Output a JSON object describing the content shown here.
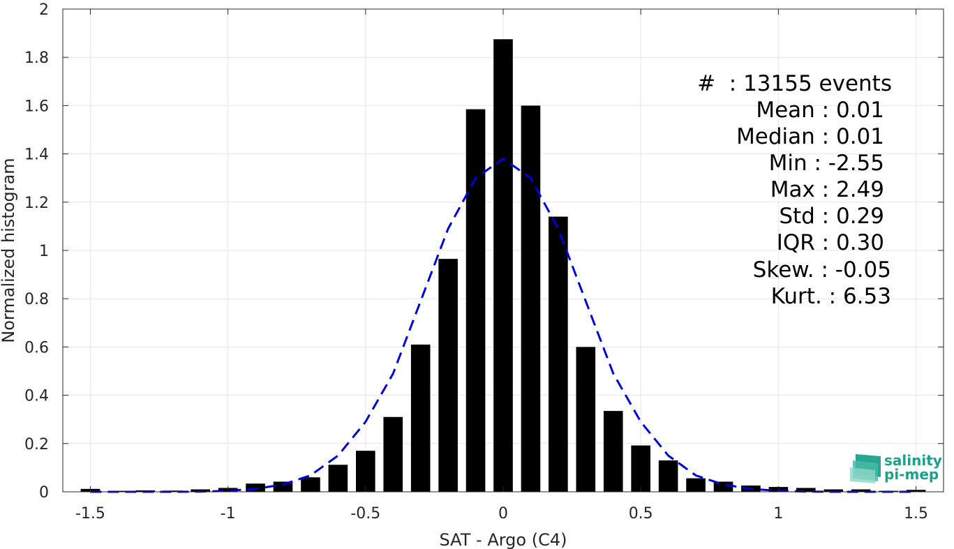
{
  "chart_data": {
    "type": "bar",
    "xlabel": "SAT - Argo (C4)",
    "ylabel": "Normalized histogram",
    "xlim": [
      -1.6,
      1.6
    ],
    "ylim": [
      0,
      2
    ],
    "grid": true,
    "x_ticks": [
      -1.5,
      -1,
      -0.5,
      0,
      0.5,
      1,
      1.5
    ],
    "x_tick_labels": [
      "-1.5",
      "-1",
      "-0.5",
      "0",
      "0.5",
      "1",
      "1.5"
    ],
    "y_ticks": [
      0,
      0.2,
      0.4,
      0.6,
      0.8,
      1,
      1.2,
      1.4,
      1.6,
      1.8,
      2
    ],
    "y_tick_labels": [
      "0",
      "0.2",
      "0.4",
      "0.6",
      "0.8",
      "1",
      "1.2",
      "1.4",
      "1.6",
      "1.8",
      "2"
    ],
    "bin_width": 0.1,
    "bar_color": "#000000",
    "x": [
      -1.5,
      -1.4,
      -1.3,
      -1.2,
      -1.1,
      -1.0,
      -0.9,
      -0.8,
      -0.7,
      -0.6,
      -0.5,
      -0.4,
      -0.3,
      -0.2,
      -0.1,
      0.0,
      0.1,
      0.2,
      0.3,
      0.4,
      0.5,
      0.6,
      0.7,
      0.8,
      0.9,
      1.0,
      1.1,
      1.2,
      1.3,
      1.4,
      1.5
    ],
    "values": [
      0.012,
      0.004,
      0.006,
      0.005,
      0.01,
      0.016,
      0.034,
      0.042,
      0.06,
      0.112,
      0.17,
      0.31,
      0.61,
      0.965,
      1.585,
      1.875,
      1.6,
      1.14,
      0.6,
      0.335,
      0.192,
      0.13,
      0.056,
      0.042,
      0.026,
      0.02,
      0.016,
      0.01,
      0.01,
      0.004,
      0.008
    ],
    "fit": {
      "style": "dashed",
      "color": "#0000dd",
      "x": [
        -1.5,
        -1.4,
        -1.3,
        -1.2,
        -1.1,
        -1.0,
        -0.9,
        -0.8,
        -0.7,
        -0.6,
        -0.5,
        -0.4,
        -0.3,
        -0.2,
        -0.1,
        0.0,
        0.1,
        0.2,
        0.3,
        0.4,
        0.5,
        0.6,
        0.7,
        0.8,
        0.9,
        1.0,
        1.1,
        1.2,
        1.3,
        1.4,
        1.5
      ],
      "y": [
        0.0,
        0.0,
        0.0,
        0.0,
        0.001,
        0.004,
        0.012,
        0.03,
        0.068,
        0.15,
        0.29,
        0.49,
        0.79,
        1.09,
        1.3,
        1.38,
        1.3,
        1.09,
        0.79,
        0.49,
        0.29,
        0.15,
        0.068,
        0.03,
        0.012,
        0.004,
        0.001,
        0.0,
        0.0,
        0.0,
        0.0
      ]
    },
    "annotations": [
      "#  : 13155 events",
      "Mean : 0.01",
      "Median : 0.01",
      "Min : -2.55",
      "Max : 2.49",
      "Std : 0.29",
      "IQR : 0.30",
      "Skew. : -0.05",
      "Kurt. : 6.53"
    ]
  },
  "logo": {
    "line1": "salinity",
    "line2": "pi-mep",
    "color": "#1aa08c"
  }
}
